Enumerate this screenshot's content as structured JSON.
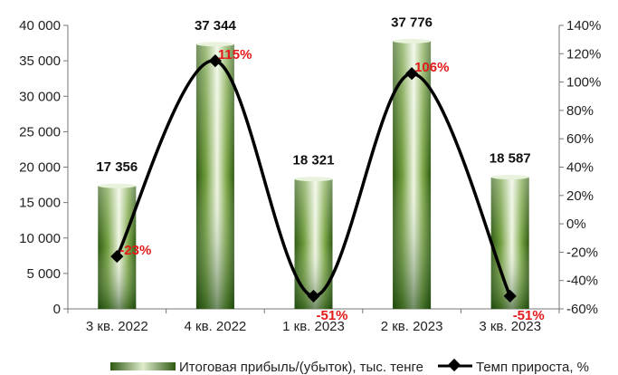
{
  "chart_data": {
    "type": "bar+line",
    "categories": [
      "3 кв. 2022",
      "4 кв. 2022",
      "1 кв. 2023",
      "2 кв. 2023",
      "3 кв. 2023"
    ],
    "series": [
      {
        "name": "Итоговая прибыль/(убыток), тыс. тенге",
        "type": "bar",
        "axis": "left",
        "values": [
          17356,
          37344,
          18321,
          37776,
          18587
        ],
        "labels": [
          "17 356",
          "37 344",
          "18 321",
          "37 776",
          "18 587"
        ],
        "color": "#6b9a3a"
      },
      {
        "name": "Темп прироста, %",
        "type": "line",
        "axis": "right",
        "values": [
          -23,
          115,
          -51,
          106,
          -51
        ],
        "labels": [
          "-23%",
          "115%",
          "-51%",
          "106%",
          "-51%"
        ],
        "color": "#000000",
        "label_color": "#e31a1a"
      }
    ],
    "y_left": {
      "range": [
        0,
        40000
      ],
      "ticks": [
        0,
        5000,
        10000,
        15000,
        20000,
        25000,
        30000,
        35000,
        40000
      ],
      "tick_labels": [
        "0",
        "5 000",
        "10 000",
        "15 000",
        "20 000",
        "25 000",
        "30 000",
        "35 000",
        "40 000"
      ]
    },
    "y_right": {
      "range": [
        -60,
        140
      ],
      "ticks": [
        -60,
        -40,
        -20,
        0,
        20,
        40,
        60,
        80,
        100,
        120,
        140
      ],
      "tick_labels": [
        "-60%",
        "-40%",
        "-20%",
        "0%",
        "20%",
        "40%",
        "60%",
        "80%",
        "100%",
        "120%",
        "140%"
      ]
    },
    "grid": false,
    "legend": "bottom"
  }
}
